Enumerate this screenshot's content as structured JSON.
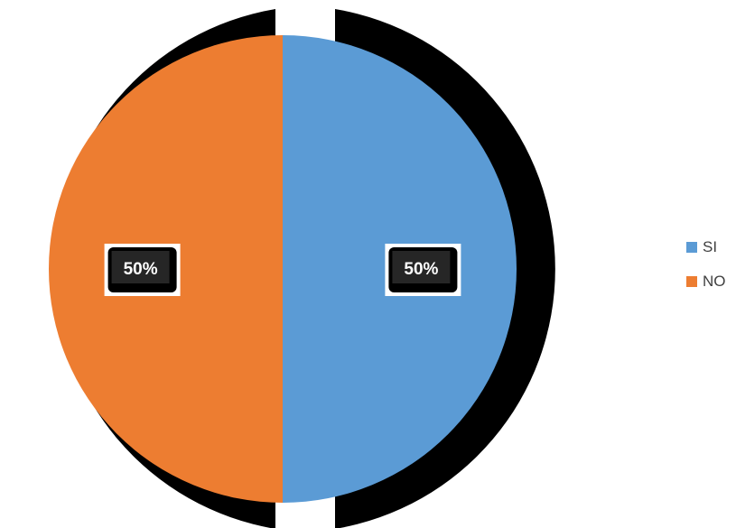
{
  "chart_data": {
    "type": "pie",
    "title": "",
    "series": [
      {
        "name": "SI",
        "value": 50,
        "label": "50%",
        "color": "#5b9bd5"
      },
      {
        "name": "NO",
        "value": 50,
        "label": "50%",
        "color": "#ed7d31"
      }
    ],
    "legend": {
      "position": "right"
    },
    "shadow_color": "#000000",
    "label_box_color": "#262626",
    "label_text_color": "#ffffff"
  }
}
